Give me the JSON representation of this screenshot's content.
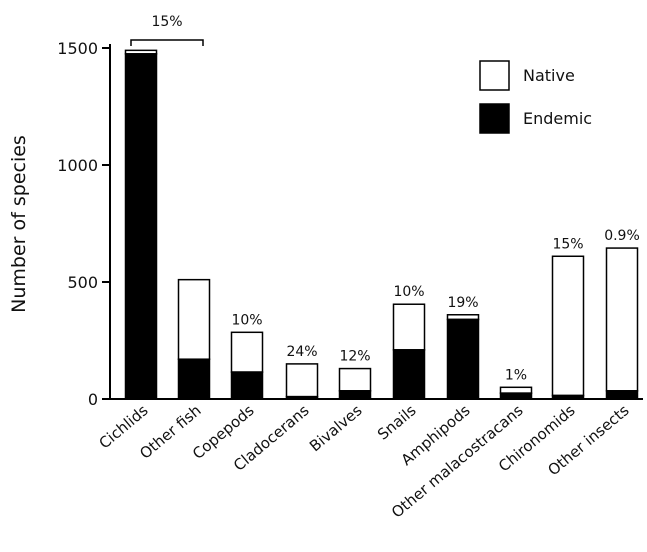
{
  "chart_data": {
    "type": "bar",
    "stacked": true,
    "ylabel": "Number of species",
    "xlabel": "",
    "ylim": [
      0,
      1500
    ],
    "yticks": [
      0,
      500,
      1000,
      1500
    ],
    "categories": [
      "Cichlids",
      "Other fish",
      "Copepods",
      "Cladocerans",
      "Bivalves",
      "Snails",
      "Amphipods",
      "Other malacostracans",
      "Chironomids",
      "Other insects"
    ],
    "series": [
      {
        "name": "Endemic",
        "values": [
          1475,
          170,
          115,
          10,
          35,
          210,
          340,
          25,
          15,
          35
        ]
      },
      {
        "name": "Native",
        "values": [
          15,
          340,
          170,
          140,
          95,
          195,
          20,
          25,
          595,
          610
        ]
      }
    ],
    "annotations": [
      "15%",
      "",
      "10%",
      "24%",
      "12%",
      "10%",
      "19%",
      "1%",
      "15%",
      "0.9%"
    ],
    "legend": {
      "position": "top-right",
      "entries": [
        "Native",
        "Endemic"
      ]
    },
    "colors": {
      "Native": "#ffffff",
      "Endemic": "#000000",
      "outline": "#000000"
    }
  }
}
